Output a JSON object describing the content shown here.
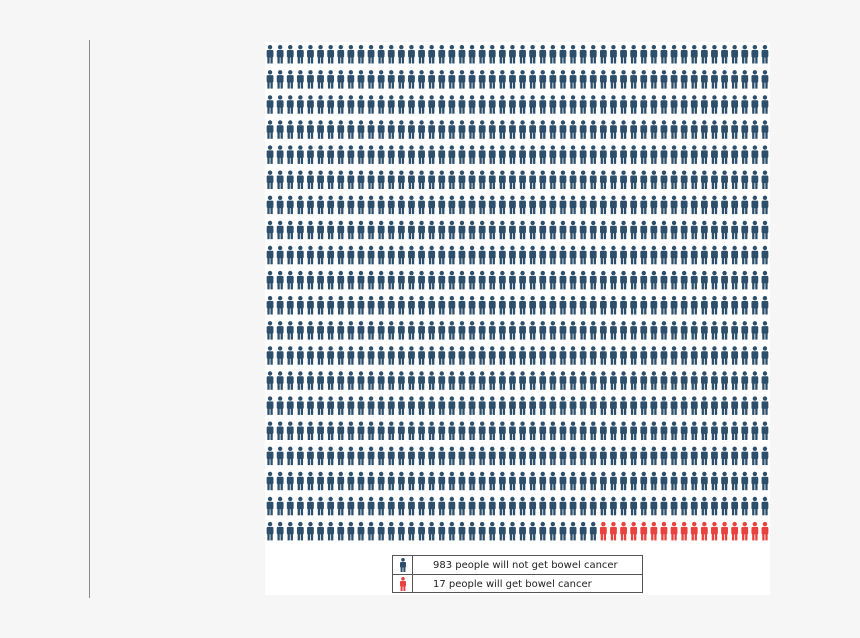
{
  "chart_data": {
    "type": "pictogram",
    "total": 1000,
    "columns": 50,
    "rows": 20,
    "series": [
      {
        "name": "983 people will not get bowel cancer",
        "value": 983,
        "color": "#2d4f6b"
      },
      {
        "name": "17 people will get bowel cancer",
        "value": 17,
        "color": "#e8423f"
      }
    ],
    "legend": {
      "placement": "bottom-center"
    }
  },
  "icons": {
    "person": "person-icon"
  }
}
